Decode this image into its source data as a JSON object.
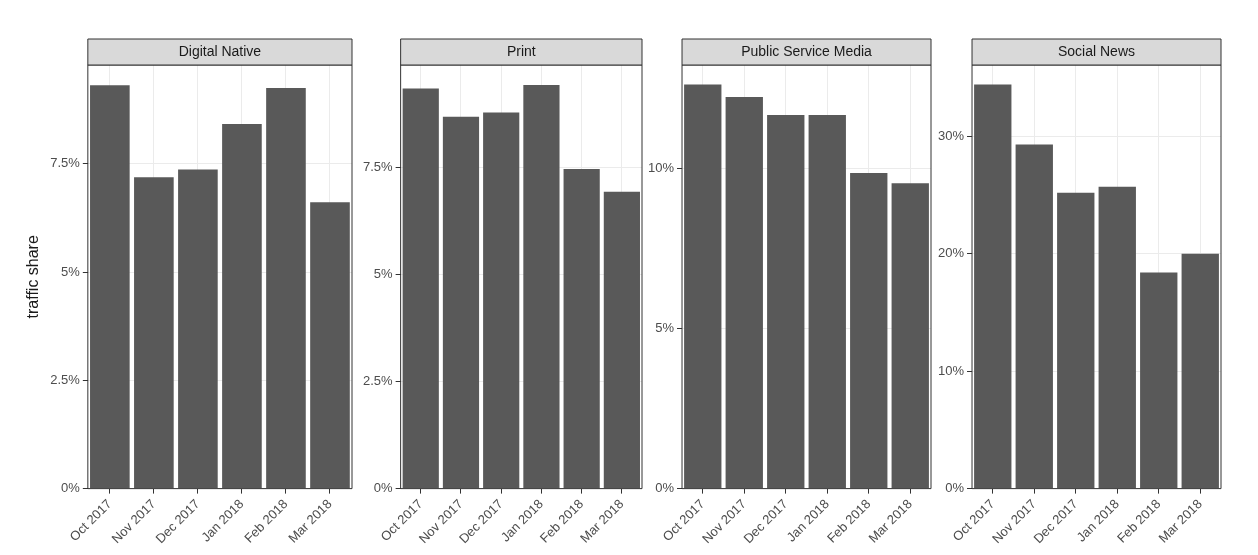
{
  "chart_data": [
    {
      "type": "bar",
      "title": "Digital Native",
      "ylabel": "traffic share",
      "categories": [
        "Oct 2017",
        "Nov 2017",
        "Dec 2017",
        "Jan 2018",
        "Feb 2018",
        "Mar 2018"
      ],
      "values": [
        9.31,
        7.19,
        7.37,
        8.42,
        9.25,
        6.61
      ],
      "color": "#595959",
      "ylim": [
        0,
        9.78
      ],
      "yticks": [
        {
          "value": 0,
          "label": "0%"
        },
        {
          "value": 2.5,
          "label": "2.5%"
        },
        {
          "value": 5,
          "label": "5%"
        },
        {
          "value": 7.5,
          "label": "7.5%"
        }
      ],
      "grid": true
    },
    {
      "type": "bar",
      "title": "Print",
      "categories": [
        "Oct 2017",
        "Nov 2017",
        "Dec 2017",
        "Jan 2018",
        "Feb 2018",
        "Mar 2018"
      ],
      "values": [
        9.35,
        8.69,
        8.79,
        9.43,
        7.47,
        6.94
      ],
      "color": "#595959",
      "ylim": [
        0,
        9.9
      ],
      "yticks": [
        {
          "value": 0,
          "label": "0%"
        },
        {
          "value": 2.5,
          "label": "2.5%"
        },
        {
          "value": 5,
          "label": "5%"
        },
        {
          "value": 7.5,
          "label": "7.5%"
        }
      ],
      "grid": true
    },
    {
      "type": "bar",
      "title": "Public Service Media",
      "categories": [
        "Oct 2017",
        "Nov 2017",
        "Dec 2017",
        "Jan 2018",
        "Feb 2018",
        "Mar 2018"
      ],
      "values": [
        12.62,
        12.23,
        11.67,
        11.67,
        9.86,
        9.54
      ],
      "color": "#595959",
      "ylim": [
        0,
        13.23
      ],
      "yticks": [
        {
          "value": 0,
          "label": "0%"
        },
        {
          "value": 5,
          "label": "5%"
        },
        {
          "value": 10,
          "label": "10%"
        }
      ],
      "grid": true
    },
    {
      "type": "bar",
      "title": "Social News",
      "categories": [
        "Oct 2017",
        "Nov 2017",
        "Dec 2017",
        "Jan 2018",
        "Feb 2018",
        "Mar 2018"
      ],
      "values": [
        34.4,
        29.3,
        25.2,
        25.7,
        18.4,
        20.0
      ],
      "color": "#595959",
      "ylim": [
        0,
        36.07
      ],
      "yticks": [
        {
          "value": 0,
          "label": "0%"
        },
        {
          "value": 10,
          "label": "10%"
        },
        {
          "value": 20,
          "label": "20%"
        },
        {
          "value": 30,
          "label": "30%"
        }
      ],
      "grid": true
    }
  ]
}
